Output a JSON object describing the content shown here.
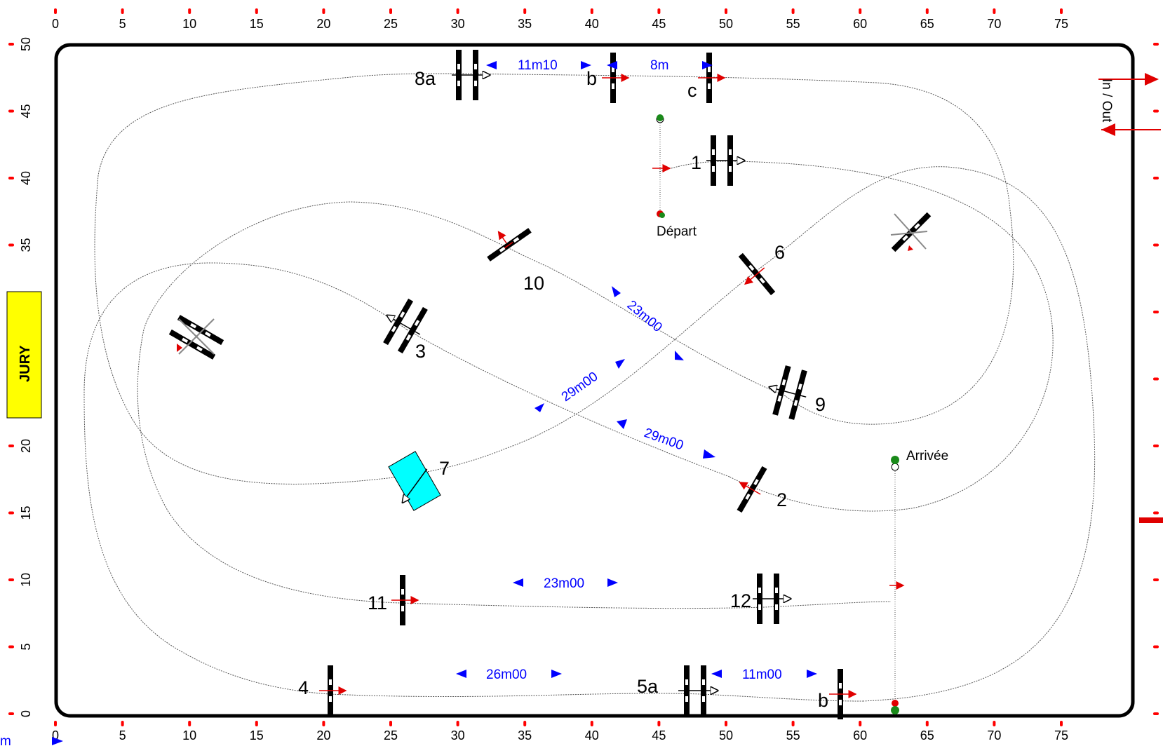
{
  "colors": {
    "arena_border": "#000000",
    "distance_text": "#0000ff",
    "direction_arrow": "#e00000",
    "ruler_tick": "#ff0000",
    "jury_box": "#ffff00",
    "water_jump": "#00ffff",
    "flag_green": "#1a8a1a"
  },
  "axes": {
    "x_ticks": [
      "0",
      "5",
      "10",
      "15",
      "20",
      "25",
      "30",
      "35",
      "40",
      "45",
      "50",
      "55",
      "60",
      "65",
      "70",
      "75"
    ],
    "y_ticks": [
      "0",
      "5",
      "10",
      "15",
      "20",
      "25",
      "30",
      "35",
      "40",
      "45",
      "50"
    ],
    "x_range_m": [
      0,
      80
    ],
    "y_range_m": [
      0,
      50
    ]
  },
  "jury": {
    "label": "JURY"
  },
  "entrance": {
    "label": "In / Out"
  },
  "start": {
    "label": "Départ"
  },
  "finish": {
    "label": "Arrivée"
  },
  "obstacles": [
    {
      "id": "1",
      "label": "1"
    },
    {
      "id": "2",
      "label": "2"
    },
    {
      "id": "3",
      "label": "3"
    },
    {
      "id": "4",
      "label": "4"
    },
    {
      "id": "5a",
      "label": "5a"
    },
    {
      "id": "5b",
      "label": "b"
    },
    {
      "id": "6",
      "label": "6"
    },
    {
      "id": "7",
      "label": "7"
    },
    {
      "id": "8a",
      "label": "8a"
    },
    {
      "id": "8b",
      "label": "b"
    },
    {
      "id": "8c",
      "label": "c"
    },
    {
      "id": "9",
      "label": "9"
    },
    {
      "id": "10",
      "label": "10"
    },
    {
      "id": "11",
      "label": "11"
    },
    {
      "id": "12",
      "label": "12"
    }
  ],
  "distances": [
    {
      "id": "d-8a-8b",
      "label": "11m10"
    },
    {
      "id": "d-8b-8c",
      "label": "8m"
    },
    {
      "id": "d-10-9",
      "label": "23m00"
    },
    {
      "id": "d-7-6",
      "label": "29m00"
    },
    {
      "id": "d-3-2",
      "label": "29m00"
    },
    {
      "id": "d-11-12",
      "label": "23m00"
    },
    {
      "id": "d-4-5a",
      "label": "26m00"
    },
    {
      "id": "d-5a-5b",
      "label": "11m00"
    }
  ],
  "corner_fragment": {
    "label": "m"
  }
}
